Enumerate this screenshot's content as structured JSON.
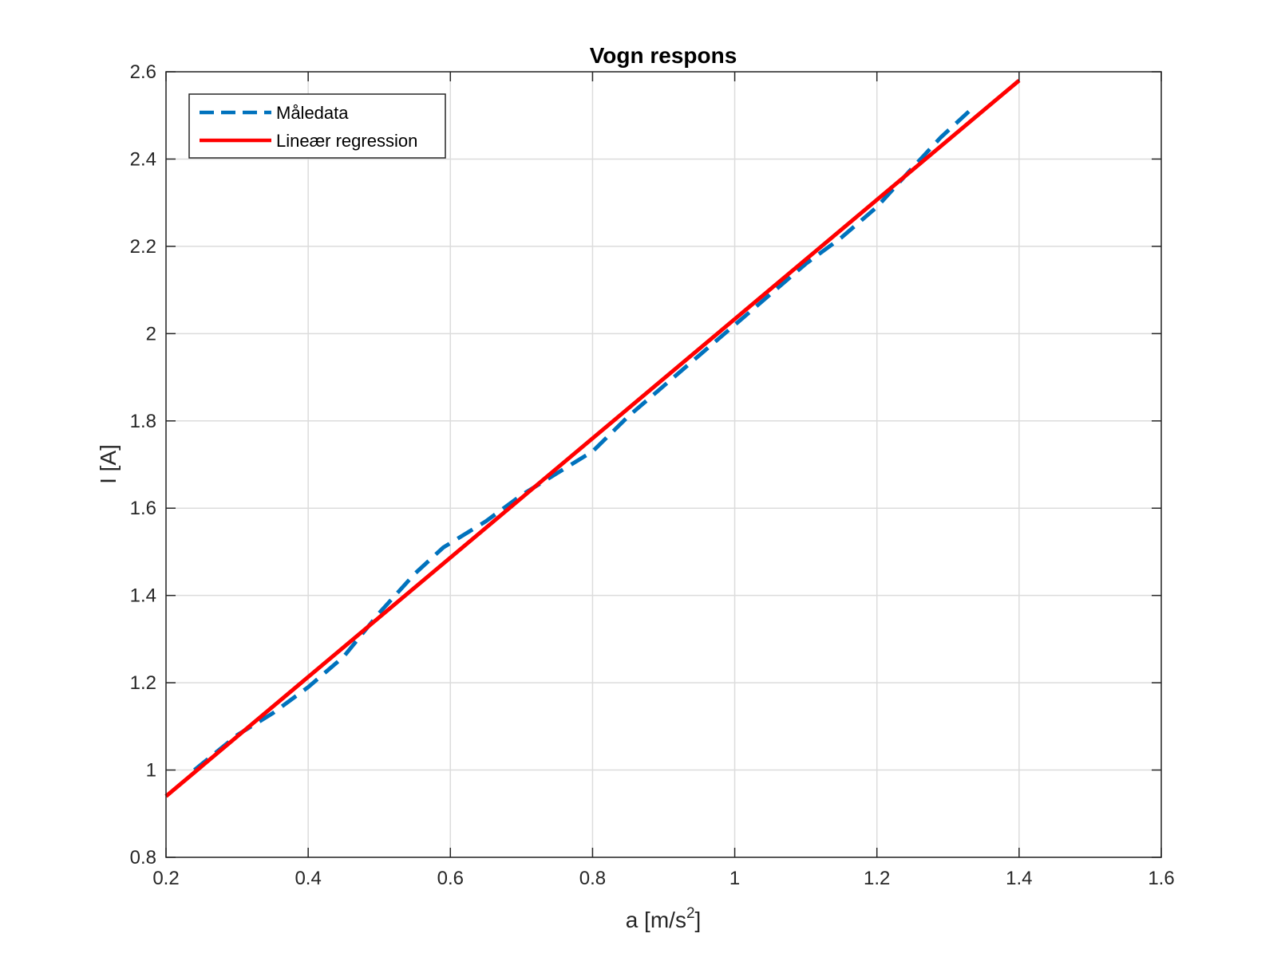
{
  "chart_data": {
    "type": "line",
    "title": "Vogn respons",
    "xlabel": "a [m/s",
    "xlabel_sup": "2",
    "xlabel_suffix": "]",
    "ylabel": "I [A]",
    "xlim": [
      0.2,
      1.6
    ],
    "ylim": [
      0.8,
      2.6
    ],
    "xticks": [
      "0.2",
      "0.4",
      "0.6",
      "0.8",
      "1",
      "1.2",
      "1.4",
      "1.6"
    ],
    "yticks": [
      "0.8",
      "1",
      "1.2",
      "1.4",
      "1.6",
      "1.8",
      "2",
      "2.2",
      "2.4",
      "2.6"
    ],
    "grid": true,
    "legend_position": "top-left",
    "series": [
      {
        "name": "Måledata",
        "style": "dashed",
        "color": "#0072BD",
        "x": [
          0.24,
          0.3,
          0.35,
          0.4,
          0.45,
          0.5,
          0.55,
          0.59,
          0.65,
          0.7,
          0.75,
          0.8,
          0.85,
          0.9,
          0.95,
          1.0,
          1.05,
          1.1,
          1.15,
          1.2,
          1.25,
          1.29,
          1.33
        ],
        "y": [
          1.0,
          1.08,
          1.13,
          1.19,
          1.26,
          1.36,
          1.45,
          1.51,
          1.57,
          1.63,
          1.68,
          1.73,
          1.81,
          1.88,
          1.95,
          2.02,
          2.09,
          2.16,
          2.22,
          2.29,
          2.38,
          2.45,
          2.51
        ]
      },
      {
        "name": "Lineær regression",
        "style": "solid",
        "color": "#FF0000",
        "x": [
          0.2,
          1.4
        ],
        "y": [
          0.94,
          2.58
        ]
      }
    ]
  }
}
